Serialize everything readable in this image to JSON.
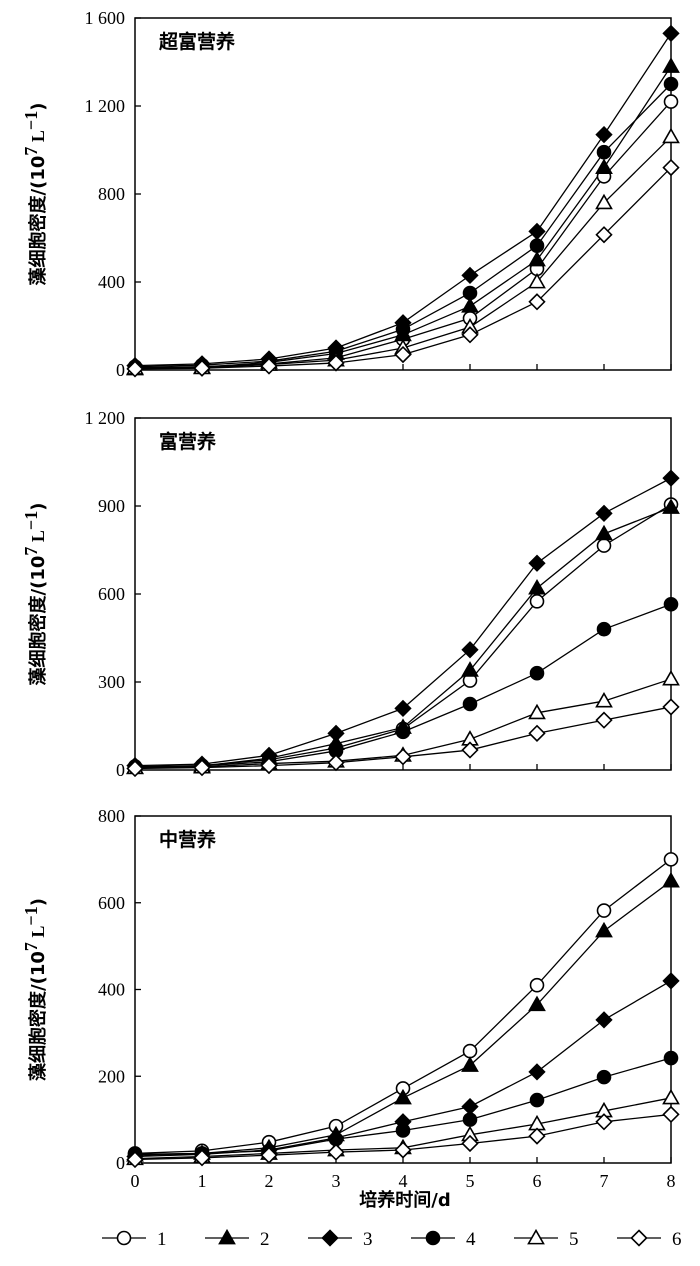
{
  "figure": {
    "xlabel": "培养时间/d",
    "legend_placement": "bottom",
    "legend": [
      {
        "label": "1",
        "marker": "circle-open"
      },
      {
        "label": "2",
        "marker": "triangle-filled"
      },
      {
        "label": "3",
        "marker": "diamond-filled"
      },
      {
        "label": "4",
        "marker": "circle-filled"
      },
      {
        "label": "5",
        "marker": "triangle-open"
      },
      {
        "label": "6",
        "marker": "diamond-open"
      }
    ]
  },
  "chart_data": [
    {
      "type": "line",
      "title": "超富营养",
      "ylabel": "藻细胞密度/(10⁷ L⁻¹)",
      "ylabel_main": "藻细胞密度/(10",
      "ylabel_sup1": "7",
      "ylabel_mid": " L",
      "ylabel_sup2": "−1",
      "ylabel_end": ")",
      "xlim": [
        0,
        8
      ],
      "ylim": [
        0,
        1600
      ],
      "xticks": [
        "0",
        "1",
        "2",
        "3",
        "4",
        "5",
        "6",
        "7",
        "8"
      ],
      "yticks": [
        {
          "value": 0,
          "label": "0"
        },
        {
          "value": 400,
          "label": "400"
        },
        {
          "value": 800,
          "label": "800"
        },
        {
          "value": 1200,
          "label": "1 200"
        },
        {
          "value": 1600,
          "label": "1 600"
        }
      ],
      "x": [
        0,
        1,
        2,
        3,
        4,
        5,
        6,
        7,
        8
      ],
      "series": [
        {
          "name": "1",
          "values": [
            10,
            15,
            28,
            55,
            140,
            235,
            460,
            880,
            1220
          ]
        },
        {
          "name": "2",
          "values": [
            5,
            12,
            35,
            75,
            160,
            290,
            500,
            920,
            1380
          ]
        },
        {
          "name": "3",
          "values": [
            20,
            28,
            50,
            100,
            215,
            430,
            630,
            1070,
            1530
          ]
        },
        {
          "name": "4",
          "values": [
            15,
            22,
            40,
            85,
            185,
            350,
            565,
            990,
            1300
          ]
        },
        {
          "name": "5",
          "values": [
            8,
            10,
            25,
            45,
            100,
            195,
            400,
            760,
            1060
          ]
        },
        {
          "name": "6",
          "values": [
            5,
            8,
            18,
            32,
            70,
            160,
            310,
            615,
            920
          ]
        }
      ]
    },
    {
      "type": "line",
      "title": "富营养",
      "ylabel": "藻细胞密度/(10⁷ L⁻¹)",
      "ylabel_main": "藻细胞密度/(10",
      "ylabel_sup1": "7",
      "ylabel_mid": " L",
      "ylabel_sup2": "−1",
      "ylabel_end": ")",
      "xlim": [
        0,
        8
      ],
      "ylim": [
        0,
        1200
      ],
      "xticks": [
        "0",
        "1",
        "2",
        "3",
        "4",
        "5",
        "6",
        "7",
        "8"
      ],
      "yticks": [
        {
          "value": 0,
          "label": "0"
        },
        {
          "value": 300,
          "label": "300"
        },
        {
          "value": 600,
          "label": "600"
        },
        {
          "value": 900,
          "label": "900"
        },
        {
          "value": 1200,
          "label": "1 200"
        }
      ],
      "x": [
        0,
        1,
        2,
        3,
        4,
        5,
        6,
        7,
        8
      ],
      "series": [
        {
          "name": "1",
          "values": [
            12,
            15,
            35,
            75,
            140,
            305,
            575,
            765,
            905
          ]
        },
        {
          "name": "2",
          "values": [
            8,
            14,
            40,
            90,
            145,
            340,
            620,
            805,
            895
          ]
        },
        {
          "name": "3",
          "values": [
            15,
            20,
            50,
            125,
            210,
            410,
            705,
            875,
            995
          ]
        },
        {
          "name": "4",
          "values": [
            10,
            14,
            28,
            65,
            130,
            225,
            330,
            480,
            565
          ]
        },
        {
          "name": "5",
          "values": [
            8,
            10,
            22,
            30,
            50,
            105,
            195,
            235,
            310
          ]
        },
        {
          "name": "6",
          "values": [
            5,
            8,
            15,
            25,
            45,
            68,
            125,
            170,
            215
          ]
        }
      ]
    },
    {
      "type": "line",
      "title": "中营养",
      "ylabel": "藻细胞密度/(10⁷ L⁻¹)",
      "ylabel_main": "藻细胞密度/(10",
      "ylabel_sup1": "7",
      "ylabel_mid": " L",
      "ylabel_sup2": "−1",
      "ylabel_end": ")",
      "xlim": [
        0,
        8
      ],
      "ylim": [
        0,
        800
      ],
      "xticks": [
        "0",
        "1",
        "2",
        "3",
        "4",
        "5",
        "6",
        "7",
        "8"
      ],
      "yticks": [
        {
          "value": 0,
          "label": "0"
        },
        {
          "value": 200,
          "label": "200"
        },
        {
          "value": 400,
          "label": "400"
        },
        {
          "value": 600,
          "label": "600"
        },
        {
          "value": 800,
          "label": "800"
        }
      ],
      "x": [
        0,
        1,
        2,
        3,
        4,
        5,
        6,
        7,
        8
      ],
      "series": [
        {
          "name": "1",
          "values": [
            22,
            28,
            48,
            85,
            172,
            258,
            410,
            582,
            700
          ]
        },
        {
          "name": "2",
          "values": [
            18,
            22,
            35,
            65,
            150,
            225,
            365,
            535,
            650
          ]
        },
        {
          "name": "3",
          "values": [
            15,
            20,
            30,
            58,
            95,
            130,
            210,
            330,
            420
          ]
        },
        {
          "name": "4",
          "values": [
            20,
            22,
            28,
            55,
            75,
            100,
            145,
            198,
            242
          ]
        },
        {
          "name": "5",
          "values": [
            10,
            15,
            22,
            30,
            35,
            65,
            90,
            120,
            150
          ]
        },
        {
          "name": "6",
          "values": [
            8,
            12,
            18,
            25,
            30,
            45,
            62,
            95,
            112
          ]
        }
      ]
    }
  ]
}
